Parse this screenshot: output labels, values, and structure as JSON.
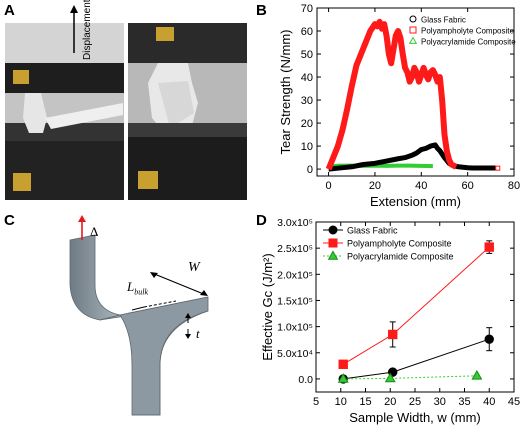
{
  "panels": {
    "a": {
      "letter": "A",
      "arrow_label": "Displacement"
    },
    "b": {
      "letter": "B"
    },
    "c": {
      "letter": "C",
      "labels": {
        "delta": "Δ",
        "w": "W",
        "l_bulk": "L",
        "l_bulk_sub": "bulk",
        "t": "t"
      }
    },
    "d": {
      "letter": "D"
    }
  },
  "colors": {
    "glass": "#000000",
    "polyampholyte": "#ff1a1a",
    "polyacrylamide": "#33cc33",
    "bulk_fill": "#8e9aa3",
    "bulk_edge": "#5d6870",
    "photo_bg": "#9a9a9a"
  },
  "chart_data": [
    {
      "type": "line",
      "title": "",
      "xlabel": "Extension (mm)",
      "ylabel": "Tear Strength (N/mm)",
      "xlim": [
        -5,
        80
      ],
      "ylim": [
        -3,
        70
      ],
      "xticks": [
        "0",
        "20",
        "40",
        "60",
        "80"
      ],
      "yticks": [
        "0",
        "10",
        "20",
        "30",
        "40",
        "50",
        "60",
        "70"
      ],
      "legend_position": "top-right",
      "series": [
        {
          "name": "Glass Fabric",
          "marker": "circle",
          "color": "#000000",
          "x": [
            0,
            5,
            10,
            15,
            20,
            25,
            30,
            33,
            36,
            38,
            40,
            42,
            44,
            46,
            47,
            48,
            50,
            52,
            54,
            56,
            58,
            60,
            62,
            64,
            66,
            68,
            70,
            72
          ],
          "y": [
            0,
            0.5,
            1,
            2,
            2.5,
            3.5,
            4.5,
            5,
            6,
            7,
            8.5,
            9,
            10,
            10.5,
            9,
            8,
            5,
            2.5,
            1.5,
            1,
            0.8,
            0.6,
            0.5,
            0.5,
            0.5,
            0.5,
            0.5,
            0.5
          ]
        },
        {
          "name": "Polyampholyte Composite",
          "marker": "square",
          "color": "#ff1a1a",
          "x": [
            0,
            2,
            4,
            6,
            8,
            10,
            12,
            14,
            16,
            18,
            20,
            21,
            22,
            23,
            24,
            25,
            26,
            27,
            28,
            29,
            30,
            31,
            32,
            33,
            34,
            35,
            36,
            37,
            38,
            39,
            40,
            41,
            42,
            43,
            44,
            45,
            46,
            47,
            48,
            49,
            50,
            51,
            52,
            53,
            55
          ],
          "y": [
            0,
            5,
            10,
            17,
            26,
            36,
            45,
            50,
            55,
            60,
            63,
            62,
            64,
            61,
            63,
            58,
            50,
            46,
            52,
            58,
            60,
            57,
            50,
            44,
            42,
            38,
            40,
            44,
            42,
            38,
            41,
            44,
            41,
            39,
            42,
            43,
            41,
            38,
            40,
            30,
            15,
            8,
            4,
            2,
            1
          ]
        },
        {
          "name": "Polyacrylamide Composite",
          "marker": "triangle",
          "color": "#33cc33",
          "x": [
            0,
            5,
            10,
            15,
            20,
            25,
            30,
            35,
            40,
            45
          ],
          "y": [
            1.2,
            1.5,
            1.5,
            1.4,
            1.5,
            1.4,
            1.5,
            1.5,
            1.4,
            1.3
          ]
        }
      ]
    },
    {
      "type": "scatter",
      "title": "",
      "xlabel": "Sample Width, w (mm)",
      "ylabel": "Effective Gc (J/m²)",
      "xlim": [
        5,
        45
      ],
      "ylim": [
        -25000,
        300000
      ],
      "xticks": [
        "5",
        "10",
        "15",
        "20",
        "25",
        "30",
        "35",
        "40",
        "45"
      ],
      "yticks": [
        "0.0",
        "5.0x10⁴",
        "1.0x10⁵",
        "1.5x10⁵",
        "2.0x10⁵",
        "2.5x10⁵",
        "3.0x10⁵"
      ],
      "legend_position": "top-left",
      "series": [
        {
          "name": "Glass Fabric",
          "marker": "circle",
          "color": "#000000",
          "x": [
            10.5,
            20.5,
            40
          ],
          "y": [
            0,
            13000,
            76000
          ],
          "err": [
            0,
            0,
            22000
          ]
        },
        {
          "name": "Polyampholyte Composite",
          "marker": "square",
          "color": "#ff1a1a",
          "x": [
            10.5,
            20.5,
            40
          ],
          "y": [
            28000,
            85000,
            252000
          ],
          "err": [
            0,
            24000,
            12000
          ]
        },
        {
          "name": "Polyacrylamide Composite",
          "marker": "triangle",
          "color": "#33cc33",
          "x": [
            10.5,
            20,
            37.5
          ],
          "y": [
            0,
            1000,
            6000
          ],
          "err": [
            0,
            0,
            0
          ]
        }
      ]
    }
  ]
}
